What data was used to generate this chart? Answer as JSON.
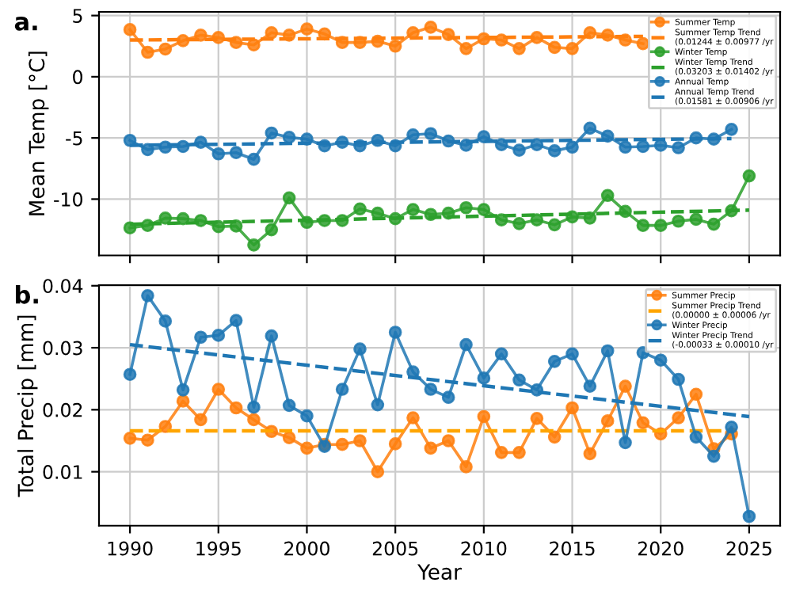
{
  "chart_data": [
    {
      "type": "line",
      "ylabel": "Mean Temp [°C]",
      "annotations": [
        "a."
      ],
      "x": [
        1990,
        1991,
        1992,
        1993,
        1994,
        1995,
        1996,
        1997,
        1998,
        1999,
        2000,
        2001,
        2002,
        2003,
        2004,
        2005,
        2006,
        2007,
        2008,
        2009,
        2010,
        2011,
        2012,
        2013,
        2014,
        2015,
        2016,
        2017,
        2018,
        2019,
        2020,
        2021,
        2022,
        2023,
        2024
      ],
      "xlim": [
        1988.25,
        2026.75
      ],
      "xticks": [
        1990,
        1995,
        2000,
        2005,
        2010,
        2015,
        2020,
        2025
      ],
      "ylim": [
        -14.6,
        5.3
      ],
      "yticks": [
        -10,
        -5,
        0,
        5
      ],
      "tick_labels": "y",
      "grid": true,
      "legend": "top right",
      "marker": "circle",
      "series": [
        {
          "name": "Summer Temp",
          "color": "#ff7f0e",
          "line_style": "solid",
          "values": [
            3.85,
            2.0,
            2.26,
            2.95,
            3.4,
            3.2,
            2.8,
            2.6,
            3.6,
            3.4,
            3.9,
            3.5,
            2.8,
            2.8,
            2.9,
            2.5,
            3.6,
            4.05,
            3.45,
            2.3,
            3.1,
            3.0,
            2.3,
            3.2,
            2.4,
            2.3,
            3.6,
            3.4,
            3.0,
            2.7,
            null,
            null,
            null,
            null,
            null
          ]
        },
        {
          "name": "Summer Temp Trend\n(0.01244 ± 0.00977 /yr",
          "color": "#ff7f0e",
          "line_style": "dashed",
          "marker": "none",
          "x": [
            1990,
            2019
          ],
          "values": [
            3.0,
            3.3
          ]
        },
        {
          "name": "Winter Temp",
          "color": "#2ca02c",
          "line_style": "solid",
          "x": [
            1990,
            1991,
            1992,
            1993,
            1994,
            1995,
            1996,
            1997,
            1998,
            1999,
            2000,
            2001,
            2002,
            2003,
            2004,
            2005,
            2006,
            2007,
            2008,
            2009,
            2010,
            2011,
            2012,
            2013,
            2014,
            2015,
            2016,
            2017,
            2018,
            2019,
            2020,
            2021,
            2022,
            2023,
            2024,
            2025
          ],
          "values": [
            -12.35,
            -12.15,
            -11.55,
            -11.6,
            -11.75,
            -12.25,
            -12.2,
            -13.75,
            -12.5,
            -9.9,
            -11.9,
            -11.75,
            -11.75,
            -10.8,
            -11.15,
            -11.6,
            -10.85,
            -11.25,
            -11.15,
            -10.7,
            -10.85,
            -11.7,
            -12.0,
            -11.7,
            -12.1,
            -11.45,
            -11.55,
            -9.7,
            -11.0,
            -12.15,
            -12.15,
            -11.8,
            -11.65,
            -12.05,
            -10.95,
            -8.1
          ]
        },
        {
          "name": "Winter Temp Trend\n(0.03203 ± 0.01402 /yr",
          "color": "#2ca02c",
          "line_style": "dashed",
          "marker": "none",
          "x": [
            1990,
            2025
          ],
          "values": [
            -12.05,
            -10.9
          ]
        },
        {
          "name": "Annual Temp",
          "color": "#1f77b4",
          "line_style": "solid",
          "values": [
            -5.2,
            -5.95,
            -5.75,
            -5.7,
            -5.35,
            -6.3,
            -6.2,
            -6.75,
            -4.6,
            -4.95,
            -5.1,
            -5.65,
            -5.35,
            -5.65,
            -5.2,
            -5.65,
            -4.75,
            -4.65,
            -5.25,
            -5.6,
            -4.9,
            -5.55,
            -6.0,
            -5.55,
            -6.05,
            -5.75,
            -4.2,
            -4.85,
            -5.75,
            -5.7,
            -5.6,
            -5.8,
            -5.0,
            -5.1,
            -4.3
          ]
        },
        {
          "name": "Annual Temp Trend\n(0.01581 ± 0.00906 /yr",
          "color": "#1f77b4",
          "line_style": "dashed",
          "marker": "none",
          "x": [
            1990,
            2024
          ],
          "values": [
            -5.6,
            -5.05
          ]
        }
      ]
    },
    {
      "type": "line",
      "ylabel": "Total Precip [mm]",
      "xlabel": "Year",
      "annotations": [
        "b."
      ],
      "x": [
        1990,
        1991,
        1992,
        1993,
        1994,
        1995,
        1996,
        1997,
        1998,
        1999,
        2000,
        2001,
        2002,
        2003,
        2004,
        2005,
        2006,
        2007,
        2008,
        2009,
        2010,
        2011,
        2012,
        2013,
        2014,
        2015,
        2016,
        2017,
        2018,
        2019,
        2020,
        2021,
        2022,
        2023,
        2024
      ],
      "xlim": [
        1988.25,
        2026.75
      ],
      "xticks": [
        1990,
        1995,
        2000,
        2005,
        2010,
        2015,
        2020,
        2025
      ],
      "ylim": [
        0.0013,
        0.0401
      ],
      "yticks": [
        0.01,
        0.02,
        0.03,
        0.04
      ],
      "grid": true,
      "legend": "top right",
      "marker": "circle",
      "series": [
        {
          "name": "Summer Precip",
          "color": "#ff7f0e",
          "line_style": "solid",
          "values": [
            0.0154,
            0.0151,
            0.0173,
            0.0214,
            0.0184,
            0.0233,
            0.0203,
            0.0184,
            0.0165,
            0.0155,
            0.0138,
            0.0144,
            0.0144,
            0.015,
            0.01,
            0.0145,
            0.0187,
            0.0138,
            0.015,
            0.0108,
            0.0189,
            0.0131,
            0.0131,
            0.0186,
            0.0156,
            0.0203,
            0.0129,
            0.0182,
            0.0238,
            0.0179,
            0.0161,
            0.0187,
            0.0225,
            0.0137,
            0.0161
          ]
        },
        {
          "name": "Summer Precip Trend\n(0.00000 ± 0.00006 /yr",
          "color": "#ffa500",
          "line_style": "dashed",
          "marker": "none",
          "x": [
            1990,
            2024
          ],
          "values": [
            0.0166,
            0.0166
          ]
        },
        {
          "name": "Winter Precip",
          "color": "#1f77b4",
          "line_style": "solid",
          "x": [
            1990,
            1991,
            1992,
            1993,
            1994,
            1995,
            1996,
            1997,
            1998,
            1999,
            2000,
            2001,
            2002,
            2003,
            2004,
            2005,
            2006,
            2007,
            2008,
            2009,
            2010,
            2011,
            2012,
            2013,
            2014,
            2015,
            2016,
            2017,
            2018,
            2019,
            2020,
            2021,
            2022,
            2023,
            2024,
            2025
          ],
          "values": [
            0.0257,
            0.0384,
            0.0343,
            0.0232,
            0.0317,
            0.032,
            0.0344,
            0.0204,
            0.0319,
            0.0207,
            0.019,
            0.0141,
            0.0233,
            0.0298,
            0.0208,
            0.0325,
            0.0261,
            0.0233,
            0.022,
            0.0305,
            0.0251,
            0.029,
            0.0248,
            0.0232,
            0.0278,
            0.029,
            0.0238,
            0.0295,
            0.0147,
            0.0292,
            0.028,
            0.0249,
            0.0156,
            0.0125,
            0.0172,
            0.0028
          ]
        },
        {
          "name": "Winter Precip Trend\n(-0.00033 ± 0.00010 /yr",
          "color": "#1f77b4",
          "line_style": "dashed",
          "marker": "none",
          "x": [
            1990,
            2025
          ],
          "values": [
            0.0305,
            0.0189
          ]
        }
      ]
    }
  ]
}
